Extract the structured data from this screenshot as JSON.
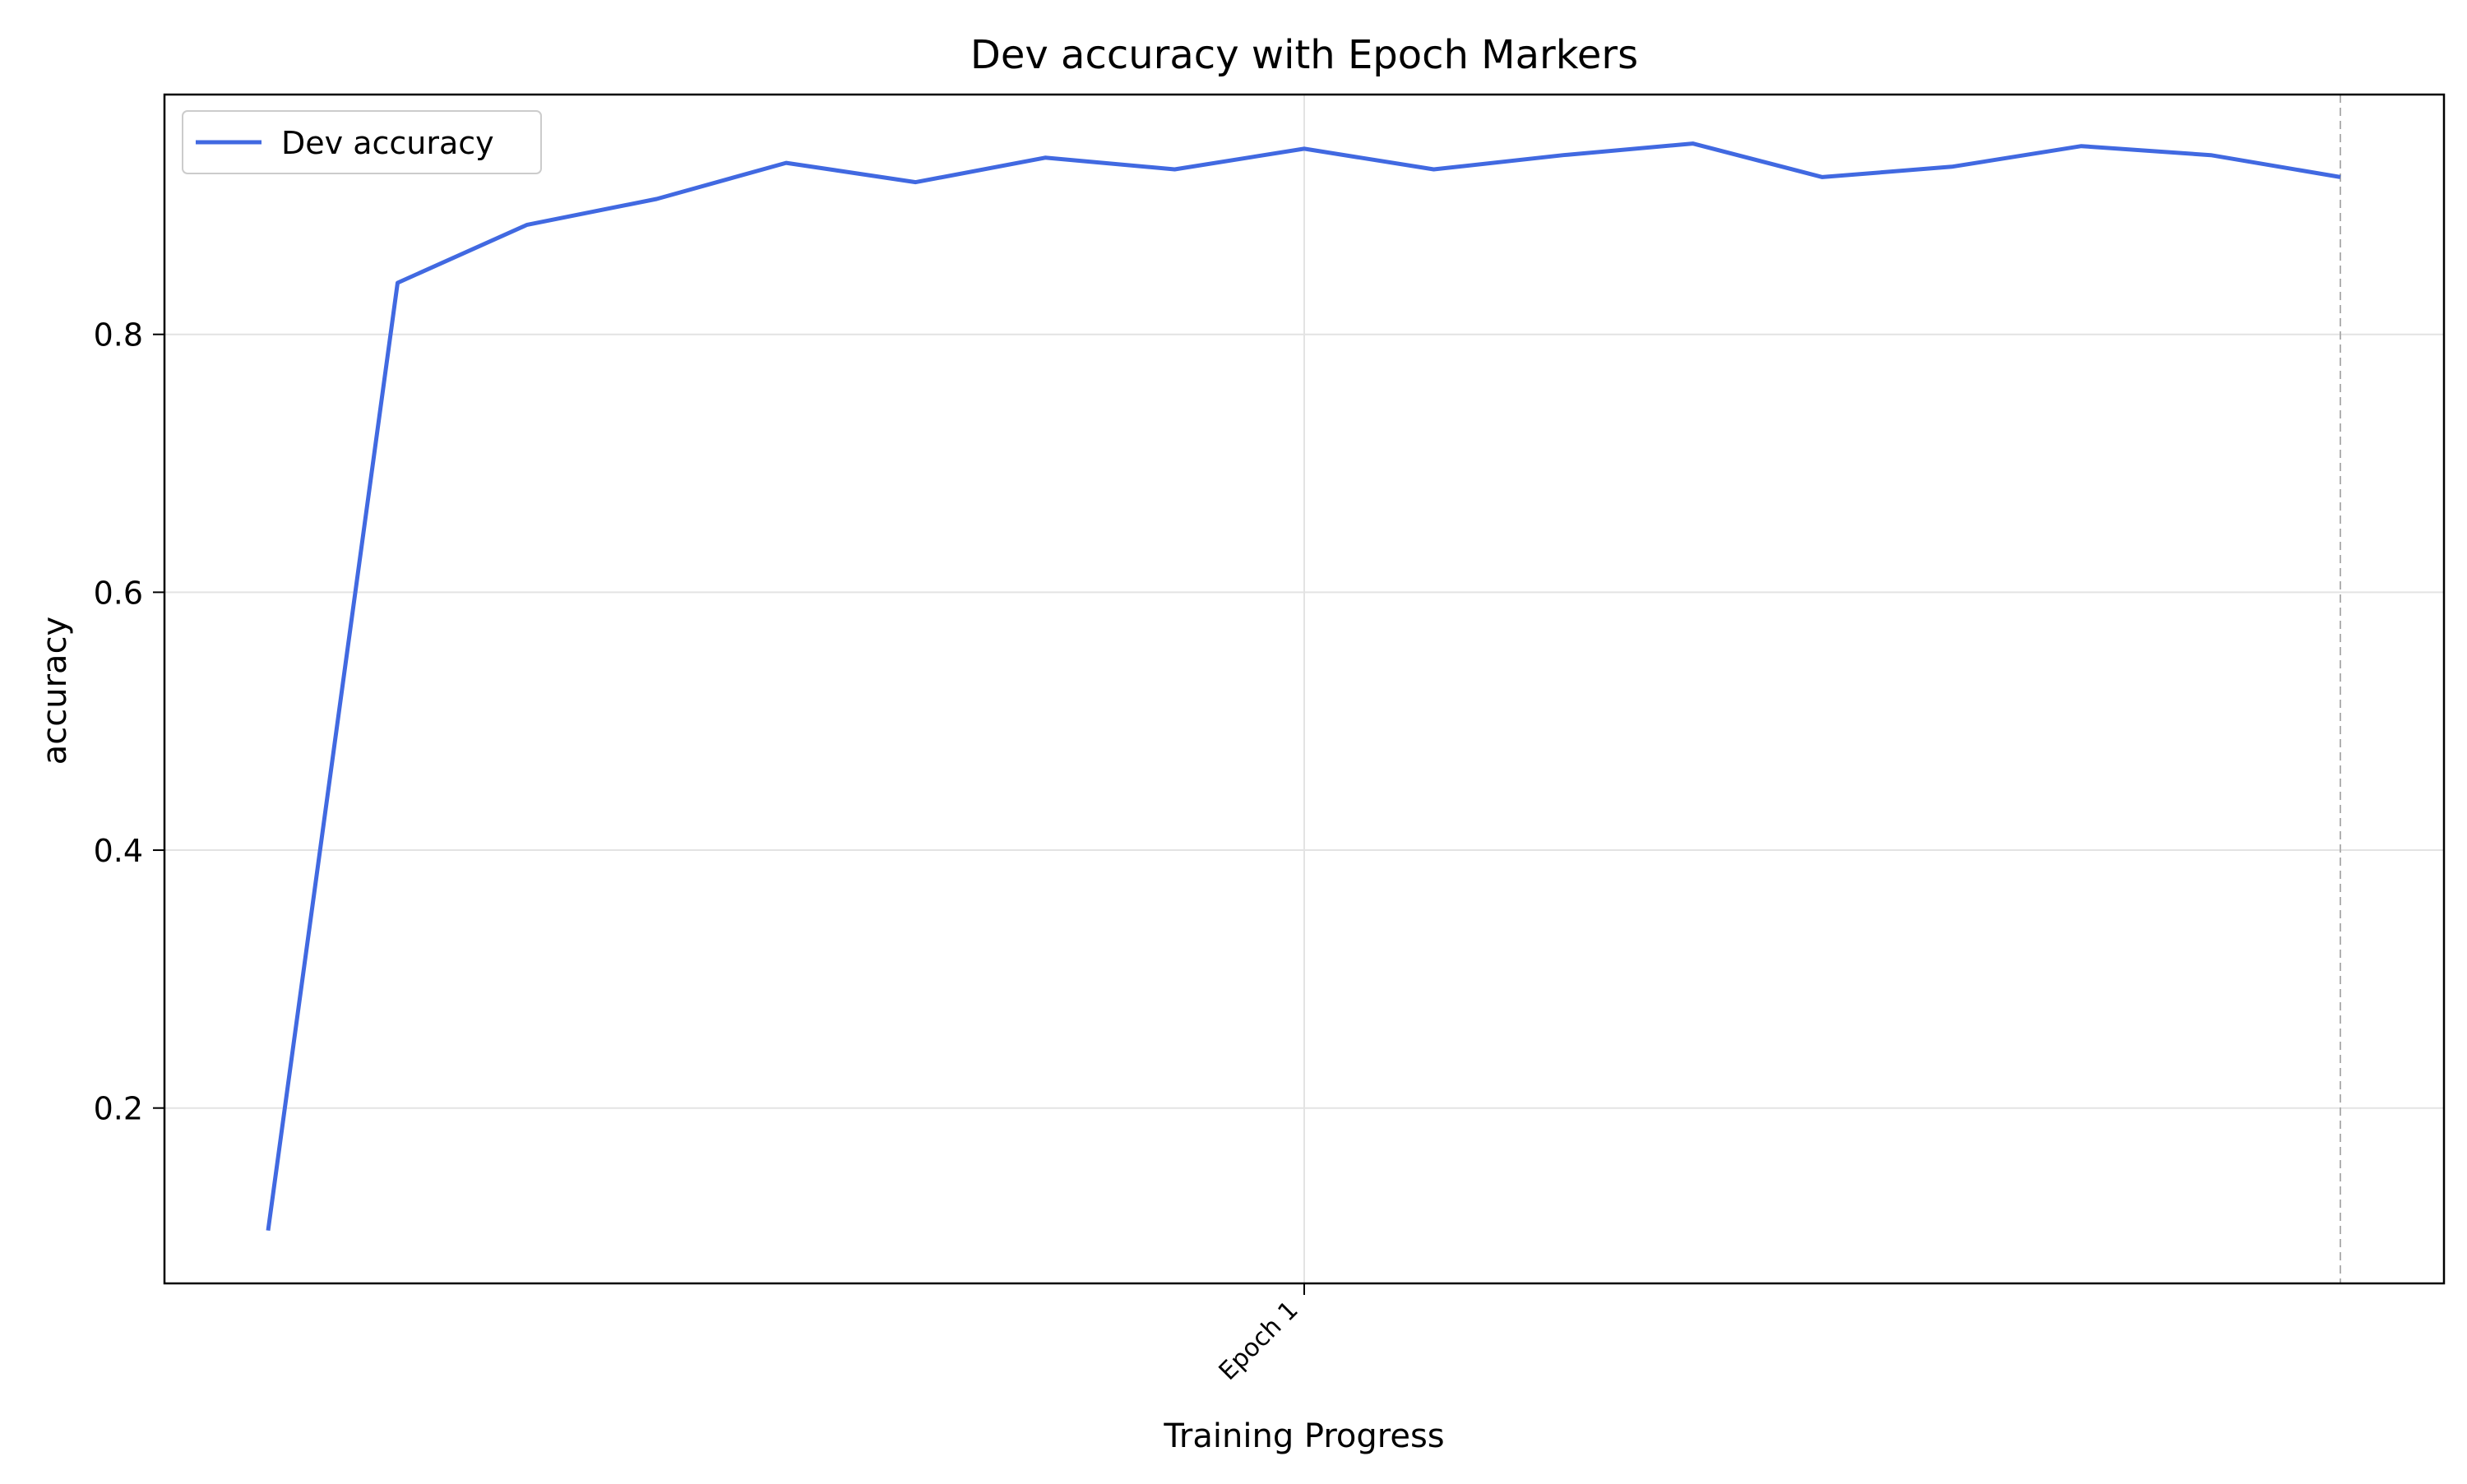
{
  "chart_data": {
    "type": "line",
    "title": "Dev accuracy with Epoch Markers",
    "xlabel": "Training Progress",
    "ylabel": "accuracy",
    "x_tick_labels": [
      {
        "x": 8,
        "label": "Epoch 1"
      }
    ],
    "y_ticks": [
      0.2,
      0.4,
      0.6,
      0.8
    ],
    "xlim": [
      -0.8,
      16.8
    ],
    "ylim": [
      0.064,
      0.986
    ],
    "grid": true,
    "legend_placement": "top-left",
    "epoch_boundaries": [
      16
    ],
    "series": [
      {
        "name": "Dev accuracy",
        "color": "#4169e1",
        "x": [
          0,
          1,
          2,
          3,
          4,
          5,
          6,
          7,
          8,
          9,
          10,
          11,
          12,
          13,
          14,
          15,
          16
        ],
        "y": [
          0.105,
          0.84,
          0.885,
          0.905,
          0.933,
          0.918,
          0.937,
          0.928,
          0.944,
          0.928,
          0.939,
          0.948,
          0.922,
          0.93,
          0.946,
          0.939,
          0.922
        ]
      }
    ]
  }
}
